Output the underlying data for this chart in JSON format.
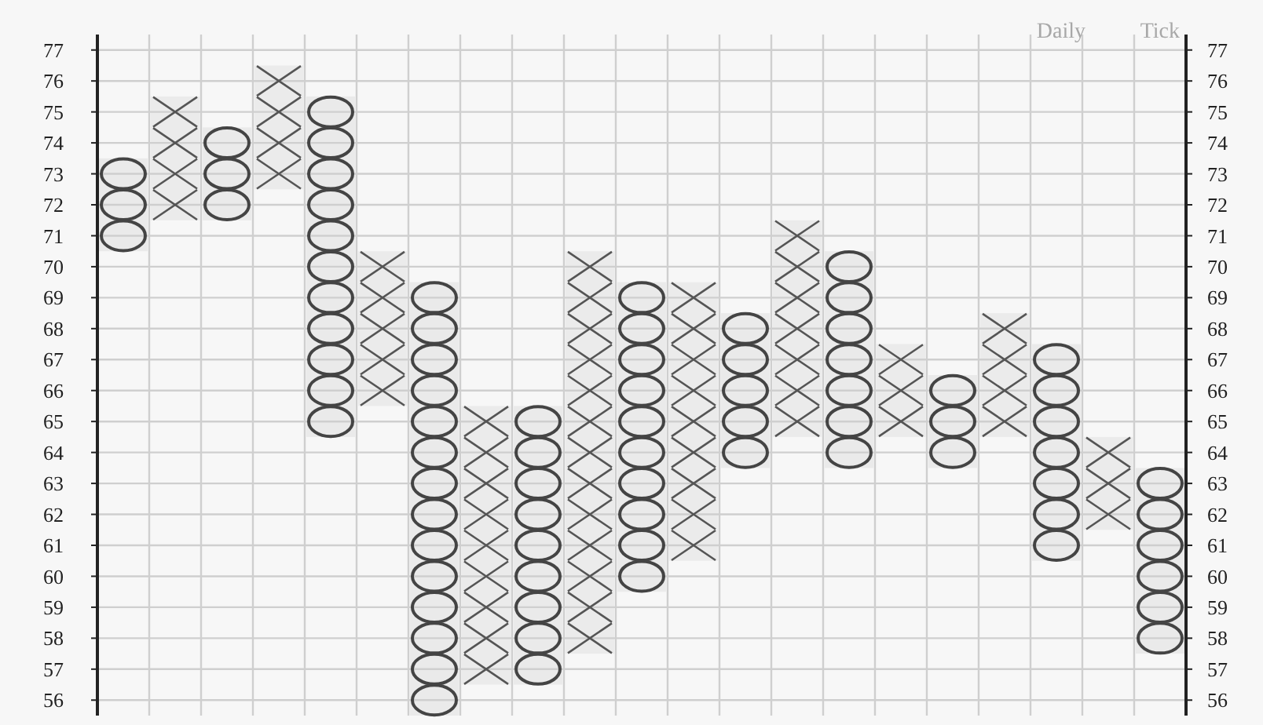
{
  "chart_data": {
    "type": "bar",
    "annotations": [
      "Daily",
      "Tick"
    ],
    "categories": [
      null,
      null,
      null,
      null,
      null,
      null,
      null,
      null,
      null,
      null,
      null,
      null,
      null,
      null,
      null,
      null,
      null,
      null,
      null,
      null,
      null
    ],
    "series": [
      {
        "marker": "cross",
        "color": "#555555",
        "base": [
          null,
          71.5,
          null,
          72.5,
          null,
          65.5,
          null,
          56.5,
          null,
          57.5,
          null,
          60.5,
          null,
          64.5,
          null,
          64.5,
          null,
          64.5,
          null,
          61.5,
          null
        ],
        "values": [
          null,
          4,
          null,
          4,
          null,
          5,
          null,
          9,
          null,
          13,
          null,
          9,
          null,
          7,
          null,
          3,
          null,
          4,
          null,
          3,
          null
        ]
      },
      {
        "marker": "circle",
        "color": "#444444",
        "base": [
          70.5,
          null,
          71.5,
          null,
          64.5,
          null,
          55.5,
          null,
          56.5,
          null,
          59.5,
          null,
          63.5,
          null,
          63.5,
          null,
          63.5,
          null,
          60.5,
          null,
          57.5
        ],
        "values": [
          3,
          null,
          3,
          null,
          11,
          null,
          14,
          null,
          9,
          null,
          10,
          null,
          5,
          null,
          7,
          null,
          3,
          null,
          7,
          null,
          6
        ]
      }
    ],
    "ylim": [
      55.5,
      77.5
    ],
    "yticks": [
      56,
      57,
      58,
      59,
      60,
      61,
      62,
      63,
      64,
      65,
      66,
      67,
      68,
      69,
      70,
      71,
      72,
      73,
      74,
      75,
      76,
      77
    ],
    "y2lim": [
      55.5,
      77.5
    ],
    "y2ticks": [
      56,
      57,
      58,
      59,
      60,
      61,
      62,
      63,
      64,
      65,
      66,
      67,
      68,
      69,
      70,
      71,
      72,
      73,
      74,
      75,
      76,
      77
    ],
    "tick_labels": "y",
    "grid": true
  }
}
